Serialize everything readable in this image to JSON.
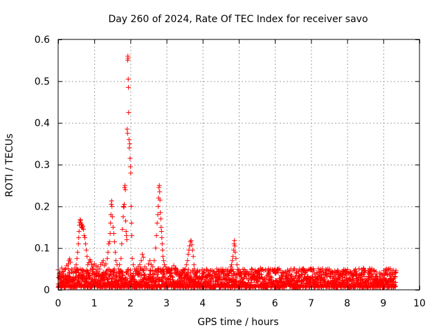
{
  "chart_data": {
    "type": "scatter",
    "title": "Day 260 of 2024, Rate Of TEC Index for receiver savo",
    "xlabel": "GPS time / hours",
    "ylabel": "ROTI / TECUs",
    "xlim": [
      0,
      10
    ],
    "ylim": [
      0,
      0.6
    ],
    "x_ticks": [
      0,
      1,
      2,
      3,
      4,
      5,
      6,
      7,
      8,
      9,
      10
    ],
    "x_tick_labels": [
      "0",
      "1",
      "2",
      "3",
      "4",
      "5",
      "6",
      "7",
      "8",
      "9",
      "10"
    ],
    "y_ticks": [
      0,
      0.1,
      0.2,
      0.3,
      0.4,
      0.5,
      0.6
    ],
    "y_tick_labels": [
      "0",
      "0.1",
      "0.2",
      "0.3",
      "0.4",
      "0.5",
      "0.6"
    ],
    "grid": true,
    "marker": "plus",
    "color": "#ff0000",
    "baseline_x_range": [
      0.0,
      9.35
    ],
    "baseline_y_range": [
      0.0,
      0.045
    ],
    "points": [
      [
        0.0,
        0.048
      ],
      [
        0.02,
        0.03
      ],
      [
        0.05,
        0.041
      ],
      [
        0.08,
        0.036
      ],
      [
        0.1,
        0.052
      ],
      [
        0.13,
        0.044
      ],
      [
        0.16,
        0.028
      ],
      [
        0.2,
        0.05
      ],
      [
        0.24,
        0.058
      ],
      [
        0.28,
        0.062
      ],
      [
        0.3,
        0.07
      ],
      [
        0.32,
        0.074
      ],
      [
        0.34,
        0.066
      ],
      [
        0.38,
        0.046
      ],
      [
        0.42,
        0.04
      ],
      [
        0.46,
        0.052
      ],
      [
        0.5,
        0.06
      ],
      [
        0.52,
        0.075
      ],
      [
        0.54,
        0.09
      ],
      [
        0.56,
        0.11
      ],
      [
        0.57,
        0.125
      ],
      [
        0.58,
        0.14
      ],
      [
        0.59,
        0.155
      ],
      [
        0.6,
        0.162
      ],
      [
        0.61,
        0.168
      ],
      [
        0.62,
        0.166
      ],
      [
        0.63,
        0.16
      ],
      [
        0.64,
        0.156
      ],
      [
        0.65,
        0.15
      ],
      [
        0.66,
        0.155
      ],
      [
        0.67,
        0.148
      ],
      [
        0.68,
        0.152
      ],
      [
        0.7,
        0.145
      ],
      [
        0.72,
        0.13
      ],
      [
        0.74,
        0.125
      ],
      [
        0.76,
        0.11
      ],
      [
        0.78,
        0.095
      ],
      [
        0.8,
        0.08
      ],
      [
        0.82,
        0.06
      ],
      [
        0.85,
        0.065
      ],
      [
        0.88,
        0.072
      ],
      [
        0.9,
        0.068
      ],
      [
        0.93,
        0.06
      ],
      [
        0.96,
        0.055
      ],
      [
        1.0,
        0.062
      ],
      [
        1.05,
        0.058
      ],
      [
        1.1,
        0.055
      ],
      [
        1.15,
        0.05
      ],
      [
        1.18,
        0.06
      ],
      [
        1.22,
        0.065
      ],
      [
        1.25,
        0.07
      ],
      [
        1.28,
        0.058
      ],
      [
        1.32,
        0.062
      ],
      [
        1.36,
        0.075
      ],
      [
        1.38,
        0.09
      ],
      [
        1.4,
        0.11
      ],
      [
        1.42,
        0.115
      ],
      [
        1.44,
        0.135
      ],
      [
        1.45,
        0.16
      ],
      [
        1.46,
        0.18
      ],
      [
        1.47,
        0.205
      ],
      [
        1.48,
        0.213
      ],
      [
        1.49,
        0.2
      ],
      [
        1.5,
        0.175
      ],
      [
        1.52,
        0.15
      ],
      [
        1.54,
        0.135
      ],
      [
        1.56,
        0.115
      ],
      [
        1.58,
        0.09
      ],
      [
        1.6,
        0.07
      ],
      [
        1.63,
        0.06
      ],
      [
        1.67,
        0.05
      ],
      [
        1.7,
        0.06
      ],
      [
        1.74,
        0.075
      ],
      [
        1.76,
        0.11
      ],
      [
        1.78,
        0.145
      ],
      [
        1.8,
        0.175
      ],
      [
        1.81,
        0.2
      ],
      [
        1.82,
        0.198
      ],
      [
        1.83,
        0.205
      ],
      [
        1.84,
        0.245
      ],
      [
        1.85,
        0.25
      ],
      [
        1.86,
        0.24
      ],
      [
        1.87,
        0.165
      ],
      [
        1.88,
        0.14
      ],
      [
        1.89,
        0.13
      ],
      [
        1.9,
        0.12
      ],
      [
        1.91,
        0.385
      ],
      [
        1.92,
        0.375
      ],
      [
        1.925,
        0.55
      ],
      [
        1.93,
        0.56
      ],
      [
        1.935,
        0.555
      ],
      [
        1.94,
        0.505
      ],
      [
        1.945,
        0.485
      ],
      [
        1.95,
        0.425
      ],
      [
        1.96,
        0.36
      ],
      [
        1.97,
        0.34
      ],
      [
        1.98,
        0.35
      ],
      [
        1.99,
        0.315
      ],
      [
        2.0,
        0.295
      ],
      [
        2.01,
        0.28
      ],
      [
        2.02,
        0.2
      ],
      [
        2.03,
        0.16
      ],
      [
        2.04,
        0.13
      ],
      [
        2.05,
        0.075
      ],
      [
        2.08,
        0.06
      ],
      [
        2.12,
        0.05
      ],
      [
        2.18,
        0.04
      ],
      [
        2.22,
        0.055
      ],
      [
        2.26,
        0.06
      ],
      [
        2.3,
        0.07
      ],
      [
        2.33,
        0.085
      ],
      [
        2.36,
        0.078
      ],
      [
        2.4,
        0.055
      ],
      [
        2.45,
        0.05
      ],
      [
        2.5,
        0.062
      ],
      [
        2.54,
        0.07
      ],
      [
        2.58,
        0.06
      ],
      [
        2.62,
        0.055
      ],
      [
        2.66,
        0.07
      ],
      [
        2.7,
        0.1
      ],
      [
        2.72,
        0.13
      ],
      [
        2.74,
        0.16
      ],
      [
        2.76,
        0.18
      ],
      [
        2.77,
        0.2
      ],
      [
        2.78,
        0.22
      ],
      [
        2.79,
        0.245
      ],
      [
        2.8,
        0.25
      ],
      [
        2.81,
        0.235
      ],
      [
        2.82,
        0.215
      ],
      [
        2.83,
        0.185
      ],
      [
        2.84,
        0.17
      ],
      [
        2.85,
        0.15
      ],
      [
        2.86,
        0.14
      ],
      [
        2.87,
        0.125
      ],
      [
        2.88,
        0.11
      ],
      [
        2.89,
        0.095
      ],
      [
        2.9,
        0.08
      ],
      [
        2.92,
        0.07
      ],
      [
        2.94,
        0.06
      ],
      [
        2.97,
        0.055
      ],
      [
        3.0,
        0.05
      ],
      [
        3.05,
        0.045
      ],
      [
        3.1,
        0.04
      ],
      [
        3.15,
        0.05
      ],
      [
        3.2,
        0.058
      ],
      [
        3.25,
        0.052
      ],
      [
        3.3,
        0.045
      ],
      [
        3.35,
        0.04
      ],
      [
        3.4,
        0.035
      ],
      [
        3.45,
        0.04
      ],
      [
        3.5,
        0.048
      ],
      [
        3.55,
        0.06
      ],
      [
        3.58,
        0.07
      ],
      [
        3.6,
        0.085
      ],
      [
        3.62,
        0.095
      ],
      [
        3.64,
        0.105
      ],
      [
        3.66,
        0.115
      ],
      [
        3.68,
        0.118
      ],
      [
        3.7,
        0.108
      ],
      [
        3.72,
        0.095
      ],
      [
        3.74,
        0.08
      ],
      [
        3.76,
        0.06
      ],
      [
        3.8,
        0.04
      ],
      [
        3.85,
        0.03
      ],
      [
        3.9,
        0.028
      ],
      [
        3.95,
        0.025
      ],
      [
        4.0,
        0.03
      ],
      [
        4.1,
        0.025
      ],
      [
        4.2,
        0.022
      ],
      [
        4.3,
        0.02
      ],
      [
        4.4,
        0.022
      ],
      [
        4.5,
        0.025
      ],
      [
        4.6,
        0.028
      ],
      [
        4.7,
        0.035
      ],
      [
        4.75,
        0.045
      ],
      [
        4.78,
        0.055
      ],
      [
        4.8,
        0.06
      ],
      [
        4.82,
        0.07
      ],
      [
        4.84,
        0.08
      ],
      [
        4.86,
        0.095
      ],
      [
        4.87,
        0.11
      ],
      [
        4.88,
        0.118
      ],
      [
        4.89,
        0.105
      ],
      [
        4.9,
        0.09
      ],
      [
        4.92,
        0.075
      ],
      [
        4.95,
        0.06
      ],
      [
        4.98,
        0.045
      ],
      [
        5.05,
        0.035
      ],
      [
        5.2,
        0.04
      ],
      [
        5.4,
        0.038
      ],
      [
        5.6,
        0.052
      ],
      [
        5.62,
        0.048
      ],
      [
        5.8,
        0.035
      ],
      [
        6.0,
        0.05
      ],
      [
        6.05,
        0.045
      ],
      [
        6.2,
        0.04
      ],
      [
        6.4,
        0.038
      ],
      [
        6.6,
        0.042
      ],
      [
        6.8,
        0.048
      ],
      [
        7.0,
        0.048
      ],
      [
        7.05,
        0.043
      ],
      [
        7.2,
        0.04
      ],
      [
        7.4,
        0.038
      ],
      [
        7.6,
        0.042
      ],
      [
        7.8,
        0.035
      ],
      [
        8.0,
        0.038
      ],
      [
        8.2,
        0.04
      ],
      [
        8.4,
        0.048
      ],
      [
        8.45,
        0.052
      ],
      [
        8.6,
        0.04
      ],
      [
        8.8,
        0.038
      ],
      [
        9.0,
        0.035
      ],
      [
        9.2,
        0.038
      ],
      [
        9.35,
        0.042
      ]
    ]
  }
}
